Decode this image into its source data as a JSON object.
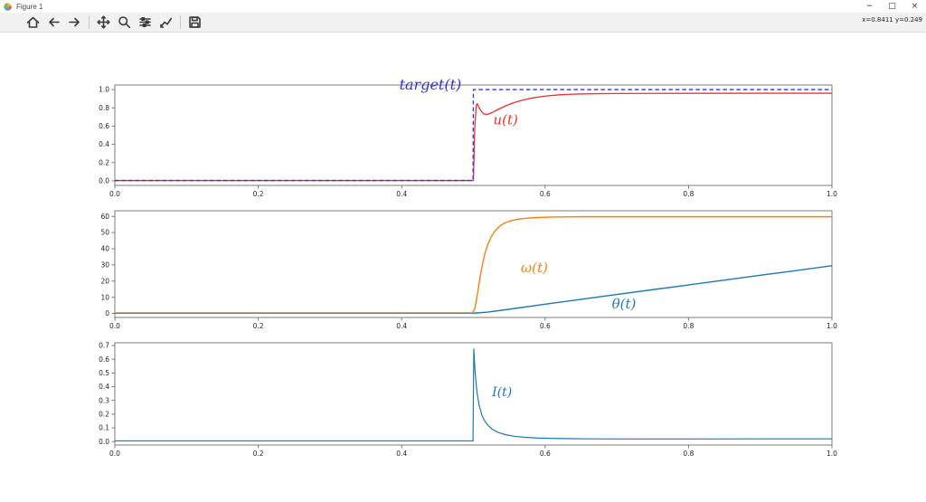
{
  "app": {
    "title": "Figure 1",
    "window_controls": {
      "minimize": "−",
      "maximize": "□",
      "close": "×"
    }
  },
  "toolbar": {
    "cursor_readout": "x=0.8411 y=0.249",
    "items": [
      {
        "name": "home"
      },
      {
        "name": "back"
      },
      {
        "name": "forward"
      },
      {
        "name": "pan"
      },
      {
        "name": "zoom"
      },
      {
        "name": "configure-subplots"
      },
      {
        "name": "edit-plot"
      },
      {
        "name": "save"
      }
    ]
  },
  "chart_data": [
    {
      "type": "line",
      "id": "p1",
      "title": "",
      "xlabel": "",
      "ylabel": "",
      "xlim": [
        0,
        1
      ],
      "ylim": [
        -0.05,
        1.05
      ],
      "grid": false,
      "xticks": [
        {
          "v": 0.0,
          "label": "0.0"
        },
        {
          "v": 0.2,
          "label": "0.2"
        },
        {
          "v": 0.4,
          "label": "0.4"
        },
        {
          "v": 0.6,
          "label": "0.6"
        },
        {
          "v": 0.8,
          "label": "0.8"
        },
        {
          "v": 1.0,
          "label": "1.0"
        }
      ],
      "yticks": [
        {
          "v": 0.0,
          "label": "0.0"
        },
        {
          "v": 0.2,
          "label": "0.2"
        },
        {
          "v": 0.4,
          "label": "0.4"
        },
        {
          "v": 0.6,
          "label": "0.6"
        },
        {
          "v": 0.8,
          "label": "0.8"
        },
        {
          "v": 1.0,
          "label": "1.0"
        }
      ],
      "series": [
        {
          "name": "u",
          "color": "#ef3030",
          "width": 1.3,
          "dash": null,
          "points": [
            [
              0,
              0.004
            ],
            [
              0.499,
              0.004
            ],
            [
              0.5,
              0.004
            ],
            [
              0.502,
              0.6
            ],
            [
              0.504,
              0.83
            ],
            [
              0.5055,
              0.845
            ],
            [
              0.508,
              0.8
            ],
            [
              0.511,
              0.762
            ],
            [
              0.514,
              0.738
            ],
            [
              0.517,
              0.728
            ],
            [
              0.521,
              0.732
            ],
            [
              0.527,
              0.752
            ],
            [
              0.535,
              0.785
            ],
            [
              0.545,
              0.822
            ],
            [
              0.557,
              0.858
            ],
            [
              0.57,
              0.888
            ],
            [
              0.585,
              0.912
            ],
            [
              0.6,
              0.929
            ],
            [
              0.62,
              0.943
            ],
            [
              0.64,
              0.95
            ],
            [
              0.66,
              0.954
            ],
            [
              0.7,
              0.957
            ],
            [
              0.75,
              0.958
            ],
            [
              0.8,
              0.959
            ],
            [
              0.9,
              0.96
            ],
            [
              1.0,
              0.96
            ]
          ]
        },
        {
          "name": "target",
          "color": "#3030ee",
          "width": 1.3,
          "dash": "4.5 3",
          "points": [
            [
              0,
              0.004
            ],
            [
              0.4995,
              0.004
            ],
            [
              0.5,
              1.0
            ],
            [
              1.0,
              1.0
            ]
          ]
        }
      ],
      "annotations": [
        {
          "text": "target(t)",
          "x": 0.44,
          "y": 1.0,
          "color": "#3333cc",
          "size": 16
        },
        {
          "text": "u(t)",
          "x": 0.545,
          "y": 0.62,
          "color": "#ef3030",
          "size": 15
        }
      ]
    },
    {
      "type": "line",
      "id": "p2",
      "title": "",
      "xlabel": "",
      "ylabel": "",
      "xlim": [
        0,
        1
      ],
      "ylim": [
        -2.5,
        63.5
      ],
      "grid": false,
      "xticks": [
        {
          "v": 0.0,
          "label": "0.0"
        },
        {
          "v": 0.2,
          "label": "0.2"
        },
        {
          "v": 0.4,
          "label": "0.4"
        },
        {
          "v": 0.6,
          "label": "0.6"
        },
        {
          "v": 0.8,
          "label": "0.8"
        },
        {
          "v": 1.0,
          "label": "1.0"
        }
      ],
      "yticks": [
        {
          "v": 0,
          "label": "0"
        },
        {
          "v": 10,
          "label": "10"
        },
        {
          "v": 20,
          "label": "20"
        },
        {
          "v": 30,
          "label": "30"
        },
        {
          "v": 40,
          "label": "40"
        },
        {
          "v": 50,
          "label": "50"
        },
        {
          "v": 60,
          "label": "60"
        }
      ],
      "series": [
        {
          "name": "theta",
          "color": "#1f77b4",
          "width": 1.4,
          "dash": null,
          "points": [
            [
              0,
              0.15
            ],
            [
              0.5,
              0.15
            ],
            [
              0.52,
              0.8
            ],
            [
              0.55,
              2.6
            ],
            [
              0.6,
              5.7
            ],
            [
              0.65,
              8.7
            ],
            [
              0.7,
              11.7
            ],
            [
              0.75,
              14.7
            ],
            [
              0.8,
              17.6
            ],
            [
              0.85,
              20.6
            ],
            [
              0.9,
              23.6
            ],
            [
              0.95,
              26.5
            ],
            [
              1.0,
              29.5
            ]
          ]
        },
        {
          "name": "omega",
          "color": "#ff7f0e",
          "width": 1.4,
          "dash": null,
          "points": [
            [
              0,
              0.4
            ],
            [
              0.499,
              0.4
            ],
            [
              0.502,
              3
            ],
            [
              0.5045,
              9
            ],
            [
              0.507,
              16
            ],
            [
              0.51,
              24
            ],
            [
              0.513,
              31
            ],
            [
              0.516,
              37
            ],
            [
              0.52,
              42.5
            ],
            [
              0.525,
              47.5
            ],
            [
              0.53,
              51
            ],
            [
              0.536,
              53.8
            ],
            [
              0.543,
              55.8
            ],
            [
              0.551,
              57.2
            ],
            [
              0.56,
              58.1
            ],
            [
              0.572,
              58.8
            ],
            [
              0.588,
              59.3
            ],
            [
              0.61,
              59.6
            ],
            [
              0.65,
              59.8
            ],
            [
              0.7,
              59.8
            ],
            [
              0.8,
              59.8
            ],
            [
              0.9,
              59.8
            ],
            [
              1.0,
              59.8
            ]
          ]
        }
      ],
      "annotations": [
        {
          "text": "ω(t)",
          "x": 0.585,
          "y": 25.5,
          "color": "#ff7f0e",
          "size": 15
        },
        {
          "text": "θ(t)",
          "x": 0.71,
          "y": 3.2,
          "color": "#1f77b4",
          "size": 15
        }
      ]
    },
    {
      "type": "line",
      "id": "p3",
      "title": "",
      "xlabel": "",
      "ylabel": "",
      "xlim": [
        0,
        1
      ],
      "ylim": [
        -0.025,
        0.72
      ],
      "grid": false,
      "xticks": [
        {
          "v": 0.0,
          "label": "0.0"
        },
        {
          "v": 0.2,
          "label": "0.2"
        },
        {
          "v": 0.4,
          "label": "0.4"
        },
        {
          "v": 0.6,
          "label": "0.6"
        },
        {
          "v": 0.8,
          "label": "0.8"
        },
        {
          "v": 1.0,
          "label": "1.0"
        }
      ],
      "yticks": [
        {
          "v": 0.0,
          "label": "0.0"
        },
        {
          "v": 0.1,
          "label": "0.1"
        },
        {
          "v": 0.2,
          "label": "0.2"
        },
        {
          "v": 0.3,
          "label": "0.3"
        },
        {
          "v": 0.4,
          "label": "0.4"
        },
        {
          "v": 0.5,
          "label": "0.5"
        },
        {
          "v": 0.6,
          "label": "0.6"
        },
        {
          "v": 0.7,
          "label": "0.7"
        }
      ],
      "series": [
        {
          "name": "I",
          "color": "#1f77b4",
          "width": 1.2,
          "dash": null,
          "points": [
            [
              0,
              0.005
            ],
            [
              0.4995,
              0.005
            ],
            [
              0.5005,
              0.675
            ],
            [
              0.5025,
              0.5
            ],
            [
              0.505,
              0.36
            ],
            [
              0.508,
              0.265
            ],
            [
              0.512,
              0.19
            ],
            [
              0.516,
              0.148
            ],
            [
              0.521,
              0.115
            ],
            [
              0.527,
              0.088
            ],
            [
              0.535,
              0.066
            ],
            [
              0.545,
              0.05
            ],
            [
              0.558,
              0.038
            ],
            [
              0.572,
              0.031
            ],
            [
              0.59,
              0.026
            ],
            [
              0.62,
              0.022
            ],
            [
              0.66,
              0.02
            ],
            [
              0.72,
              0.019
            ],
            [
              0.8,
              0.019
            ],
            [
              0.9,
              0.02
            ],
            [
              1.0,
              0.02
            ]
          ]
        }
      ],
      "annotations": [
        {
          "text": "I(t)",
          "x": 0.54,
          "y": 0.33,
          "color": "#1f77b4",
          "size": 14
        }
      ]
    }
  ]
}
